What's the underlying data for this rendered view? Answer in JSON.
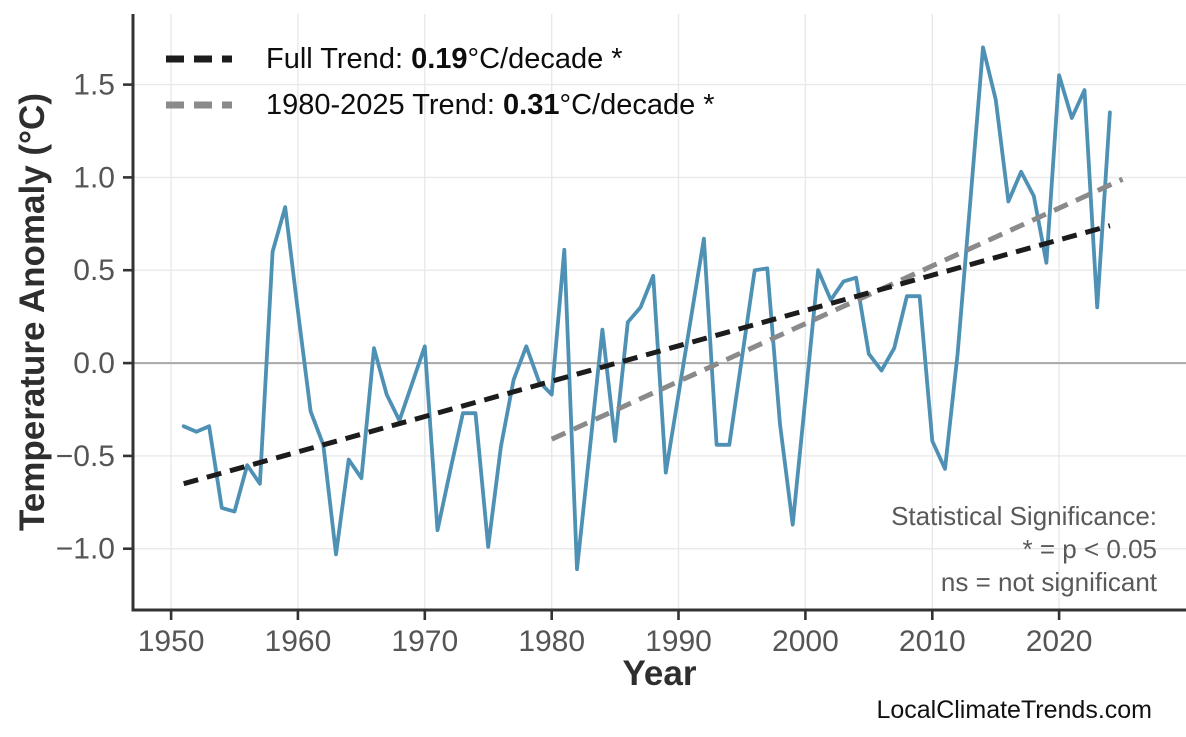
{
  "watermark": "LocalClimateTrends.com",
  "legend": {
    "items": [
      {
        "name": "full-trend",
        "prefix": "Full Trend: ",
        "value": "0.19",
        "suffix": "°C/decade *",
        "color": "#1c1c1c"
      },
      {
        "name": "1980-2025-trend",
        "prefix": "1980-2025 Trend: ",
        "value": "0.31",
        "suffix": "°C/decade *",
        "color": "#8a8a8a"
      }
    ]
  },
  "annotations": {
    "significance": [
      "Statistical Significance:",
      "* = p < 0.05",
      "ns = not significant"
    ]
  },
  "chart_data": {
    "type": "line",
    "title": "",
    "xlabel": "Year",
    "ylabel": "Temperature Anomaly (°C)",
    "xlim": [
      1947,
      2030
    ],
    "ylim": [
      -1.33,
      1.88
    ],
    "grid": true,
    "legend_position": "top-left",
    "x_ticks": {
      "values": [
        1950,
        1960,
        1970,
        1980,
        1990,
        2000,
        2010,
        2020
      ],
      "labels": [
        "1950",
        "1960",
        "1970",
        "1980",
        "1990",
        "2000",
        "2010",
        "2020"
      ]
    },
    "y_ticks": {
      "values": [
        -1.0,
        -0.5,
        0.0,
        0.5,
        1.0,
        1.5
      ],
      "labels": [
        "−1.0",
        "−0.5",
        "0.0",
        "0.5",
        "1.0",
        "1.5"
      ]
    },
    "series": [
      {
        "name": "Temperature Anomaly",
        "color": "#4e91b5",
        "line_width": 3.8,
        "x": [
          1951,
          1952,
          1953,
          1954,
          1955,
          1956,
          1957,
          1958,
          1959,
          1960,
          1961,
          1962,
          1963,
          1964,
          1965,
          1966,
          1967,
          1968,
          1969,
          1970,
          1971,
          1972,
          1973,
          1974,
          1975,
          1976,
          1977,
          1978,
          1979,
          1980,
          1981,
          1982,
          1983,
          1984,
          1985,
          1986,
          1987,
          1988,
          1989,
          1990,
          1991,
          1992,
          1993,
          1994,
          1995,
          1996,
          1997,
          1998,
          1999,
          2000,
          2001,
          2002,
          2003,
          2004,
          2005,
          2006,
          2007,
          2008,
          2009,
          2010,
          2011,
          2012,
          2013,
          2014,
          2015,
          2016,
          2017,
          2018,
          2019,
          2020,
          2021,
          2022,
          2023,
          2024
        ],
        "values": [
          -0.34,
          -0.37,
          -0.34,
          -0.78,
          -0.8,
          -0.55,
          -0.65,
          0.6,
          0.84,
          0.28,
          -0.26,
          -0.44,
          -1.03,
          -0.52,
          -0.62,
          0.08,
          -0.17,
          -0.31,
          -0.11,
          0.09,
          -0.9,
          -0.58,
          -0.27,
          -0.27,
          -0.99,
          -0.45,
          -0.09,
          0.09,
          -0.1,
          -0.17,
          0.61,
          -1.11,
          -0.47,
          0.18,
          -0.42,
          0.22,
          0.3,
          0.47,
          -0.59,
          -0.17,
          0.25,
          0.67,
          -0.44,
          -0.44,
          0.03,
          0.5,
          0.51,
          -0.33,
          -0.87,
          -0.19,
          0.5,
          0.34,
          0.44,
          0.46,
          0.05,
          -0.04,
          0.08,
          0.36,
          0.36,
          -0.42,
          -0.57,
          0.05,
          0.87,
          1.7,
          1.42,
          0.87,
          1.03,
          0.9,
          0.54,
          1.55,
          1.32,
          1.47,
          0.3,
          1.35
        ]
      }
    ],
    "trend_lines": [
      {
        "name": "Full Trend",
        "slope_c_per_decade": 0.19,
        "significant": true,
        "color": "#1c1c1c",
        "dash": [
          15,
          9
        ],
        "line_width": 5,
        "x": [
          1951,
          2024
        ],
        "y": [
          -0.65,
          0.74
        ]
      },
      {
        "name": "1980-2025 Trend",
        "slope_c_per_decade": 0.31,
        "significant": true,
        "color": "#8a8a8a",
        "dash": [
          15,
          9
        ],
        "line_width": 5,
        "x": [
          1980,
          2025
        ],
        "y": [
          -0.41,
          0.99
        ]
      }
    ],
    "style": {
      "grid_color": "#e9e9e9",
      "zero_line_color": "#a8a8a8",
      "spine_color": "#333333"
    }
  }
}
